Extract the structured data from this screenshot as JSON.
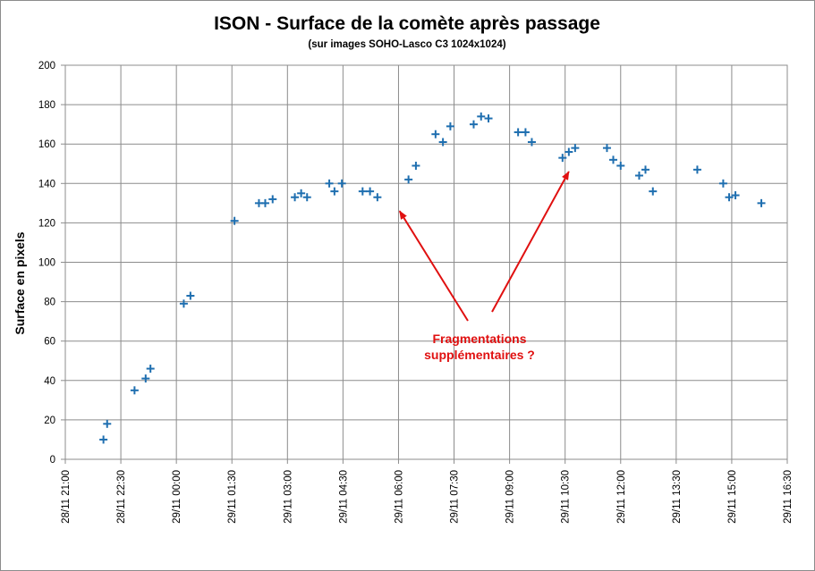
{
  "chart_data": {
    "type": "scatter",
    "title": "ISON - Surface de la comète après passage",
    "subtitle": "(sur images SOHO-Lasco C3 1024x1024)",
    "ylabel": "Surface en pixels",
    "xlabel": "",
    "ylim": [
      0,
      200
    ],
    "yticks": [
      0,
      20,
      40,
      60,
      80,
      100,
      120,
      140,
      160,
      180,
      200
    ],
    "xlim_hours": [
      0,
      19.5
    ],
    "xticks": [
      {
        "h": 0,
        "label": "28/11 21:00"
      },
      {
        "h": 1.5,
        "label": "28/11 22:30"
      },
      {
        "h": 3,
        "label": "29/11 00:00"
      },
      {
        "h": 4.5,
        "label": "29/11 01:30"
      },
      {
        "h": 6,
        "label": "29/11 03:00"
      },
      {
        "h": 7.5,
        "label": "29/11 04:30"
      },
      {
        "h": 9,
        "label": "29/11 06:00"
      },
      {
        "h": 10.5,
        "label": "29/11 07:30"
      },
      {
        "h": 12,
        "label": "29/11 09:00"
      },
      {
        "h": 13.5,
        "label": "29/11 10:30"
      },
      {
        "h": 15,
        "label": "29/11 12:00"
      },
      {
        "h": 16.5,
        "label": "29/11 13:30"
      },
      {
        "h": 18,
        "label": "29/11 15:00"
      },
      {
        "h": 19.5,
        "label": "29/11 16:30"
      }
    ],
    "x_unit": "hours after 28/11 21:00",
    "grid": true,
    "legend": "none",
    "series": [
      {
        "name": "Surface",
        "marker": "plus",
        "color": "#1f6fb0",
        "points": [
          [
            1.03,
            10
          ],
          [
            1.13,
            18
          ],
          [
            1.87,
            35
          ],
          [
            2.17,
            41
          ],
          [
            2.3,
            46
          ],
          [
            3.2,
            79
          ],
          [
            3.38,
            83
          ],
          [
            4.57,
            121
          ],
          [
            5.23,
            130
          ],
          [
            5.4,
            130
          ],
          [
            5.6,
            132
          ],
          [
            6.2,
            133
          ],
          [
            6.37,
            135
          ],
          [
            6.53,
            133
          ],
          [
            7.13,
            140
          ],
          [
            7.27,
            136
          ],
          [
            7.47,
            140
          ],
          [
            8.03,
            136
          ],
          [
            8.23,
            136
          ],
          [
            8.43,
            133
          ],
          [
            9.27,
            142
          ],
          [
            9.47,
            149
          ],
          [
            10.0,
            165
          ],
          [
            10.2,
            161
          ],
          [
            10.4,
            169
          ],
          [
            11.03,
            170
          ],
          [
            11.23,
            174
          ],
          [
            11.43,
            173
          ],
          [
            12.23,
            166
          ],
          [
            12.43,
            166
          ],
          [
            12.6,
            161
          ],
          [
            13.43,
            153
          ],
          [
            13.6,
            156
          ],
          [
            13.77,
            158
          ],
          [
            14.63,
            158
          ],
          [
            14.8,
            152
          ],
          [
            15.0,
            149
          ],
          [
            15.5,
            144
          ],
          [
            15.67,
            147
          ],
          [
            15.87,
            136
          ],
          [
            17.07,
            147
          ],
          [
            17.77,
            140
          ],
          [
            17.93,
            133
          ],
          [
            18.1,
            134
          ],
          [
            18.8,
            130
          ]
        ]
      }
    ],
    "annotations": [
      {
        "text_lines": [
          "Fragmentations",
          "supplémentaires ?"
        ],
        "color": "#e01010",
        "arrows_to": [
          [
            9.03,
            126
          ],
          [
            13.6,
            146
          ]
        ]
      }
    ]
  }
}
